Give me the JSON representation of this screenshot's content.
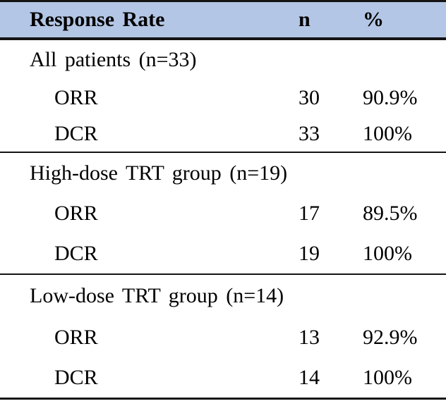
{
  "colors": {
    "header_background": "#b4c6e5",
    "rule": "#141414",
    "text": "#000000"
  },
  "table": {
    "header": {
      "label": "Response Rate",
      "n": "n",
      "percent": "%"
    },
    "sections": [
      {
        "label": "All patients (n=33)",
        "rows": [
          {
            "label": "ORR",
            "n": "30",
            "percent": "90.9%"
          },
          {
            "label": "DCR",
            "n": "33",
            "percent": "100%"
          }
        ]
      },
      {
        "label": "High-dose TRT group (n=19)",
        "rows": [
          {
            "label": "ORR",
            "n": "17",
            "percent": "89.5%"
          },
          {
            "label": "DCR",
            "n": "19",
            "percent": "100%"
          }
        ]
      },
      {
        "label": "Low-dose TRT group (n=14)",
        "rows": [
          {
            "label": "ORR",
            "n": "13",
            "percent": "92.9%"
          },
          {
            "label": "DCR",
            "n": "14",
            "percent": "100%"
          }
        ]
      }
    ]
  }
}
